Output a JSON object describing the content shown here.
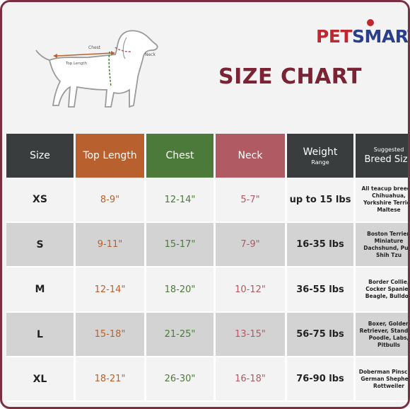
{
  "brand": {
    "pet": "PET",
    "smart": "SMART"
  },
  "title": "SIZE CHART",
  "diagram": {
    "chest": "Chest",
    "neck": "Neck",
    "top_length": "Top Length"
  },
  "headers": {
    "size": "Size",
    "top_length": "Top Length",
    "chest": "Chest",
    "neck": "Neck",
    "weight": "Weight",
    "weight_sub": "Range",
    "breed_sub": "Suggested",
    "breed": "Breed Size"
  },
  "rows": [
    {
      "size": "XS",
      "top_length": "8-9\"",
      "chest": "12-14\"",
      "neck": "5-7\"",
      "weight": "up to 15 lbs",
      "breeds": "All teacup breeds, Chihuahua, Yorkshire Terrier, Maltese"
    },
    {
      "size": "S",
      "top_length": "9-11\"",
      "chest": "15-17\"",
      "neck": "7-9\"",
      "weight": "16-35 lbs",
      "breeds": "Boston Terrier, Miniature Dachshund, Pug, Shih Tzu"
    },
    {
      "size": "M",
      "top_length": "12-14\"",
      "chest": "18-20\"",
      "neck": "10-12\"",
      "weight": "36-55 lbs",
      "breeds": "Border Collie, Cocker Spaniel, Beagle, Bulldog"
    },
    {
      "size": "L",
      "top_length": "15-18\"",
      "chest": "21-25\"",
      "neck": "13-15\"",
      "weight": "56-75 lbs",
      "breeds": "Boxer, Golden Retriever, Standard Poodle, Labs, Pitbulls"
    },
    {
      "size": "XL",
      "top_length": "18-21\"",
      "chest": "26-30\"",
      "neck": "16-18\"",
      "weight": "76-90 lbs",
      "breeds": "Doberman Pinscher, German Shepherd, Rottweiler"
    }
  ]
}
